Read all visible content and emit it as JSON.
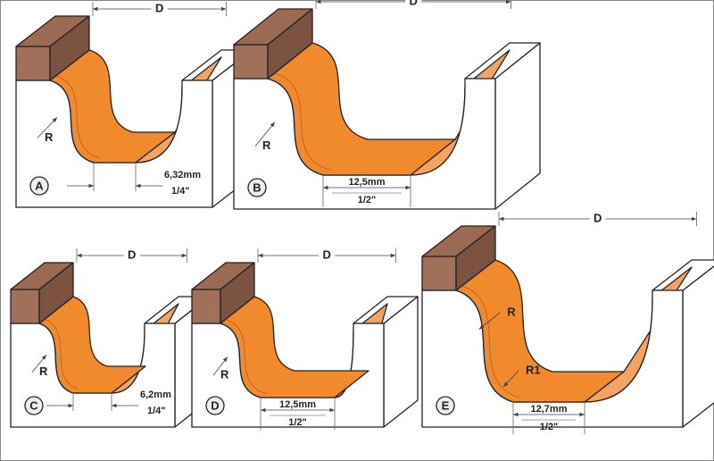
{
  "panels": [
    {
      "label": "A",
      "dimension": "D",
      "radius": [
        "R"
      ],
      "width_mm": "6,32mm",
      "width_in": "1/4\""
    },
    {
      "label": "B",
      "dimension": "D",
      "radius": [
        "R"
      ],
      "width_mm": "12,5mm",
      "width_in": "1/2\""
    },
    {
      "label": "C",
      "dimension": "D",
      "radius": [
        "R"
      ],
      "width_mm": "6,2mm",
      "width_in": "1/4\""
    },
    {
      "label": "D",
      "dimension": "D",
      "radius": [
        "R"
      ],
      "width_mm": "12,5mm",
      "width_in": "1/2\""
    },
    {
      "label": "E",
      "dimension": "D",
      "radius": [
        "R",
        "R1"
      ],
      "width_mm": "12,7mm",
      "width_in": "1/2\""
    }
  ]
}
